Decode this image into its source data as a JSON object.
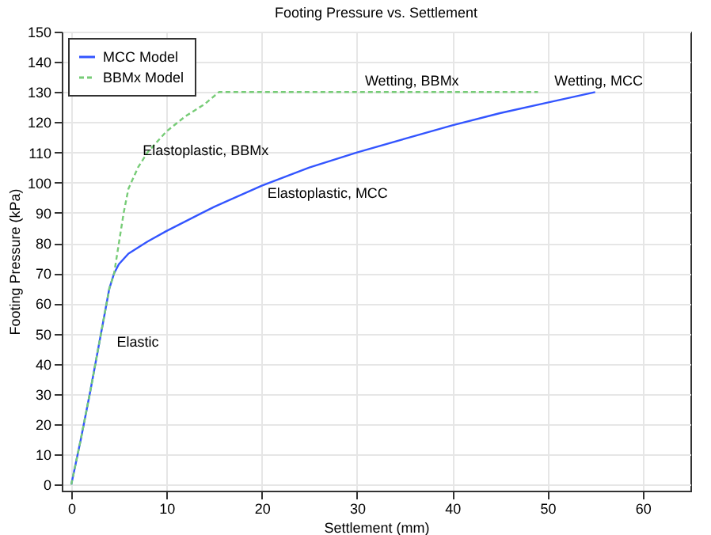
{
  "chart_data": {
    "type": "line",
    "title": "Footing Pressure vs. Settlement",
    "xlabel": "Settlement (mm)",
    "ylabel": "Footing Pressure (kPa)",
    "xlim": [
      -1,
      65
    ],
    "xticks": [
      0,
      10,
      20,
      30,
      40,
      50,
      60
    ],
    "ylim": [
      -2,
      150
    ],
    "yticks": [
      0,
      10,
      20,
      30,
      40,
      50,
      60,
      70,
      80,
      90,
      100,
      110,
      120,
      130,
      140,
      150
    ],
    "grid": true,
    "legend": "top left",
    "series": [
      {
        "name": "MCC Model",
        "color": "#3355ff",
        "line_style": "solid",
        "x": [
          0,
          1,
          2,
          3,
          4,
          4.5,
          5,
          6,
          8,
          10,
          15,
          20,
          25,
          30,
          35,
          40,
          45,
          50,
          55
        ],
        "values": [
          0,
          15,
          31,
          48,
          65,
          70,
          73,
          76.5,
          80.5,
          84,
          92,
          99,
          105,
          110,
          114.5,
          119,
          123,
          126.5,
          130
        ]
      },
      {
        "name": "BBMx Model",
        "color": "#77cc77",
        "line_style": "dashed",
        "x": [
          0,
          1,
          2,
          3,
          4,
          4.5,
          5,
          5.5,
          6,
          7,
          8,
          10,
          12,
          14,
          15.5,
          49
        ],
        "values": [
          0,
          15,
          31,
          48,
          65,
          70,
          80,
          90,
          98,
          105,
          110,
          117,
          122,
          126,
          130,
          130
        ]
      }
    ],
    "annotations": [
      "Elastic",
      "Elastoplastic, BBMx",
      "Elastoplastic, MCC",
      "Wetting, BBMx",
      "Wetting, MCC"
    ]
  }
}
